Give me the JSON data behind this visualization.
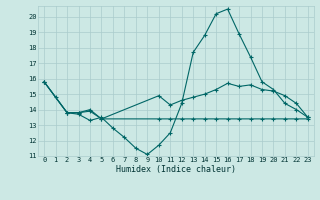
{
  "xlabel": "Humidex (Indice chaleur)",
  "background_color": "#cce8e4",
  "grid_color": "#aacccc",
  "line_color": "#006666",
  "xlim": [
    -0.5,
    23.5
  ],
  "ylim": [
    11.0,
    20.7
  ],
  "yticks": [
    11,
    12,
    13,
    14,
    15,
    16,
    17,
    18,
    19,
    20
  ],
  "xticks": [
    0,
    1,
    2,
    3,
    4,
    5,
    6,
    7,
    8,
    9,
    10,
    11,
    12,
    13,
    14,
    15,
    16,
    17,
    18,
    19,
    20,
    21,
    22,
    23
  ],
  "line1_x": [
    0,
    1,
    2,
    3,
    4,
    5,
    6,
    7,
    8,
    9,
    10,
    11,
    12,
    13,
    14,
    15,
    16,
    17,
    18,
    19,
    20,
    21,
    22,
    23
  ],
  "line1_y": [
    15.8,
    14.8,
    13.8,
    13.7,
    13.3,
    13.5,
    12.8,
    12.2,
    11.5,
    11.1,
    11.7,
    12.5,
    14.4,
    17.7,
    18.8,
    20.2,
    20.5,
    18.9,
    17.4,
    15.8,
    15.3,
    14.4,
    14.0,
    13.5
  ],
  "line2_x": [
    0,
    2,
    3,
    4,
    5,
    10,
    11,
    12,
    13,
    14,
    15,
    16,
    17,
    18,
    19,
    20,
    21,
    22,
    23
  ],
  "line2_y": [
    15.8,
    13.8,
    13.8,
    14.0,
    13.4,
    14.9,
    14.3,
    14.6,
    14.8,
    15.0,
    15.3,
    15.7,
    15.5,
    15.6,
    15.3,
    15.2,
    14.9,
    14.4,
    13.5
  ],
  "line3_x": [
    0,
    2,
    3,
    4,
    5,
    10,
    11,
    12,
    13,
    14,
    15,
    16,
    17,
    18,
    19,
    20,
    21,
    22,
    23
  ],
  "line3_y": [
    15.8,
    13.8,
    13.8,
    13.9,
    13.4,
    13.4,
    13.4,
    13.4,
    13.4,
    13.4,
    13.4,
    13.4,
    13.4,
    13.4,
    13.4,
    13.4,
    13.4,
    13.4,
    13.4
  ]
}
